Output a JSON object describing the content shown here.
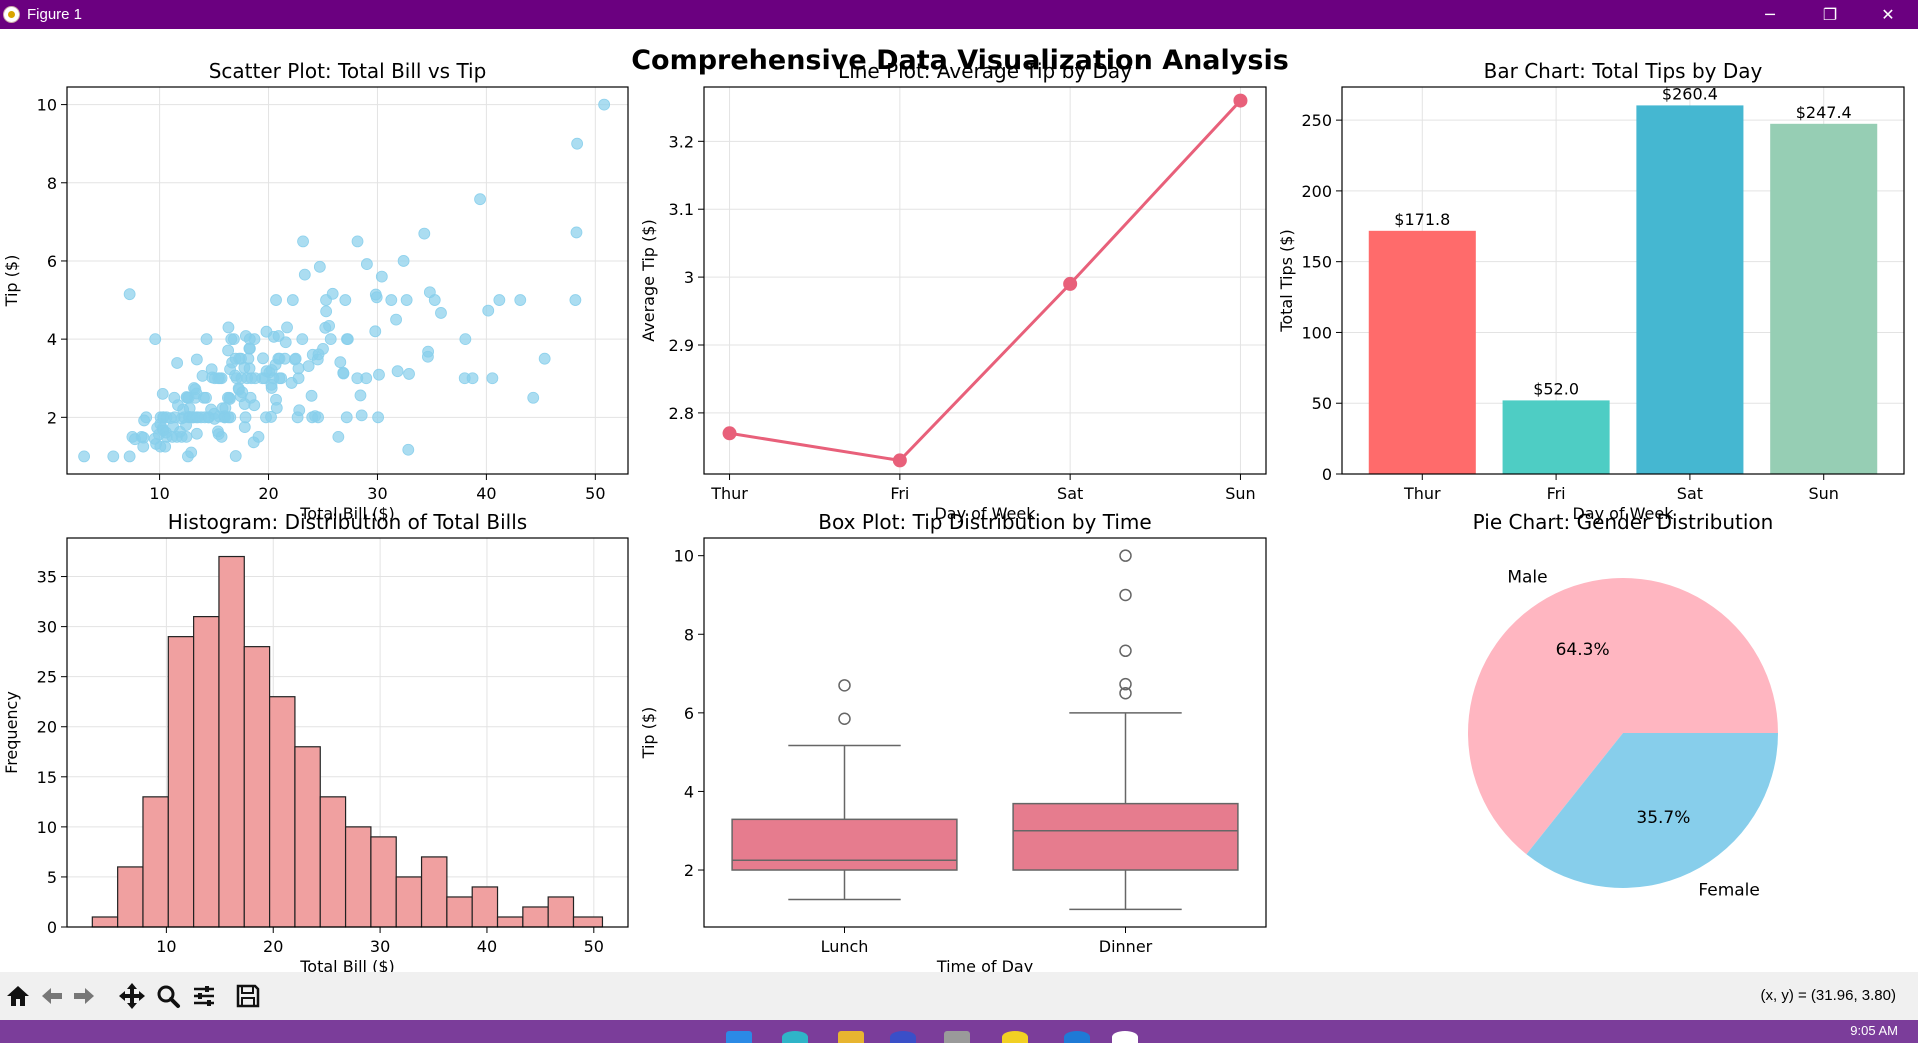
{
  "window": {
    "title": "Figure 1",
    "minimize_glyph": "─",
    "maximize_glyph": "❐",
    "close_glyph": "✕"
  },
  "figure": {
    "suptitle": "Comprehensive Data Visualization Analysis"
  },
  "toolbar": {
    "tools": [
      "home-icon",
      "back-arrow-icon",
      "forward-arrow-icon",
      "pan-icon",
      "zoom-icon",
      "configure-subplots-icon",
      "save-icon"
    ],
    "coord_readout": "(x, y) = (31.96, 3.80)"
  },
  "taskbar": {
    "clock": "9:05 AM",
    "accent": "#7b3d9a"
  },
  "colors": {
    "titlebar": "#6b0080",
    "scatter": "#87ceeb",
    "line": "#e8607a",
    "histogram": "#f0a0a0",
    "box": "#e67c8e"
  },
  "chart_data": [
    {
      "type": "scatter",
      "title": "Scatter Plot: Total Bill vs Tip",
      "xlabel": "Total Bill ($)",
      "ylabel": "Tip ($)",
      "xlim": [
        1.5,
        53
      ],
      "ylim": [
        0.55,
        10.45
      ],
      "xticks": [
        10,
        20,
        30,
        40,
        50
      ],
      "yticks": [
        2,
        4,
        6,
        8,
        10
      ],
      "grid": true,
      "points": [
        [
          3.07,
          1.0
        ],
        [
          5.75,
          1.0
        ],
        [
          7.25,
          1.0
        ],
        [
          7.25,
          5.15
        ],
        [
          7.5,
          1.5
        ],
        [
          7.74,
          1.44
        ],
        [
          8.35,
          1.5
        ],
        [
          8.5,
          1.25
        ],
        [
          8.52,
          1.48
        ],
        [
          8.58,
          1.92
        ],
        [
          8.77,
          2.0
        ],
        [
          9.55,
          1.45
        ],
        [
          9.6,
          4.0
        ],
        [
          9.68,
          1.32
        ],
        [
          9.78,
          1.73
        ],
        [
          9.94,
          1.56
        ],
        [
          10.07,
          1.25
        ],
        [
          10.07,
          1.83
        ],
        [
          10.09,
          2.0
        ],
        [
          10.27,
          1.71
        ],
        [
          10.29,
          2.6
        ],
        [
          10.33,
          1.67
        ],
        [
          10.33,
          2.0
        ],
        [
          10.34,
          1.66
        ],
        [
          10.34,
          2.0
        ],
        [
          10.51,
          1.25
        ],
        [
          10.59,
          1.61
        ],
        [
          10.63,
          2.0
        ],
        [
          10.65,
          1.5
        ],
        [
          11.02,
          1.98
        ],
        [
          11.17,
          1.5
        ],
        [
          11.24,
          1.76
        ],
        [
          11.35,
          2.5
        ],
        [
          11.38,
          2.0
        ],
        [
          11.59,
          1.5
        ],
        [
          11.61,
          3.39
        ],
        [
          11.69,
          2.31
        ],
        [
          11.87,
          1.63
        ],
        [
          12.02,
          1.97
        ],
        [
          12.03,
          1.5
        ],
        [
          12.16,
          2.2
        ],
        [
          12.26,
          2.0
        ],
        [
          12.43,
          1.8
        ],
        [
          12.46,
          1.5
        ],
        [
          12.48,
          2.52
        ],
        [
          12.54,
          2.5
        ],
        [
          12.6,
          1.0
        ],
        [
          12.66,
          2.5
        ],
        [
          12.69,
          2.0
        ],
        [
          12.74,
          2.01
        ],
        [
          12.76,
          2.23
        ],
        [
          12.9,
          1.1
        ],
        [
          13.0,
          2.0
        ],
        [
          13.03,
          2.0
        ],
        [
          13.13,
          2.0
        ],
        [
          13.16,
          2.75
        ],
        [
          13.27,
          2.5
        ],
        [
          13.28,
          2.72
        ],
        [
          13.37,
          2.0
        ],
        [
          13.39,
          2.61
        ],
        [
          13.42,
          1.58
        ],
        [
          13.42,
          3.48
        ],
        [
          13.51,
          2.0
        ],
        [
          13.81,
          2.0
        ],
        [
          13.94,
          3.06
        ],
        [
          14.07,
          2.5
        ],
        [
          14.15,
          2.0
        ],
        [
          14.26,
          2.5
        ],
        [
          14.31,
          4.0
        ],
        [
          14.48,
          2.0
        ],
        [
          14.52,
          2.0
        ],
        [
          14.73,
          2.2
        ],
        [
          14.78,
          3.23
        ],
        [
          14.83,
          3.02
        ],
        [
          15.01,
          2.09
        ],
        [
          15.04,
          1.96
        ],
        [
          15.06,
          3.0
        ],
        [
          15.36,
          1.64
        ],
        [
          15.38,
          3.0
        ],
        [
          15.42,
          1.57
        ],
        [
          15.48,
          2.02
        ],
        [
          15.53,
          3.0
        ],
        [
          15.69,
          1.5
        ],
        [
          15.69,
          3.0
        ],
        [
          15.77,
          2.23
        ],
        [
          15.95,
          2.0
        ],
        [
          15.98,
          2.03
        ],
        [
          16.0,
          2.0
        ],
        [
          16.04,
          2.24
        ],
        [
          16.27,
          2.5
        ],
        [
          16.29,
          3.71
        ],
        [
          16.31,
          2.0
        ],
        [
          16.32,
          4.3
        ],
        [
          16.4,
          2.5
        ],
        [
          16.45,
          2.47
        ],
        [
          16.47,
          3.23
        ],
        [
          16.49,
          2.0
        ],
        [
          16.58,
          4.0
        ],
        [
          16.66,
          3.4
        ],
        [
          16.82,
          4.0
        ],
        [
          16.93,
          3.07
        ],
        [
          16.97,
          3.5
        ],
        [
          16.99,
          1.01
        ],
        [
          17.07,
          3.0
        ],
        [
          17.26,
          2.74
        ],
        [
          17.29,
          2.71
        ],
        [
          17.31,
          3.5
        ],
        [
          17.46,
          2.54
        ],
        [
          17.47,
          3.5
        ],
        [
          17.51,
          3.0
        ],
        [
          17.59,
          2.64
        ],
        [
          17.78,
          3.27
        ],
        [
          17.81,
          2.34
        ],
        [
          17.82,
          1.75
        ],
        [
          17.89,
          2.0
        ],
        [
          17.92,
          4.08
        ],
        [
          18.04,
          3.0
        ],
        [
          18.15,
          3.5
        ],
        [
          18.24,
          3.76
        ],
        [
          18.26,
          3.25
        ],
        [
          18.28,
          4.0
        ],
        [
          18.29,
          3.76
        ],
        [
          18.35,
          2.5
        ],
        [
          18.43,
          3.0
        ],
        [
          18.64,
          1.36
        ],
        [
          18.69,
          2.31
        ],
        [
          18.71,
          4.0
        ],
        [
          18.78,
          3.0
        ],
        [
          19.08,
          1.5
        ],
        [
          19.44,
          3.0
        ],
        [
          19.49,
          3.51
        ],
        [
          19.65,
          3.0
        ],
        [
          19.77,
          2.0
        ],
        [
          19.81,
          4.19
        ],
        [
          19.82,
          3.18
        ],
        [
          20.08,
          3.15
        ],
        [
          20.23,
          2.01
        ],
        [
          20.27,
          2.83
        ],
        [
          20.29,
          2.75
        ],
        [
          20.29,
          3.21
        ],
        [
          20.45,
          3.0
        ],
        [
          20.49,
          4.06
        ],
        [
          20.65,
          3.35
        ],
        [
          20.69,
          2.45
        ],
        [
          20.69,
          5.0
        ],
        [
          20.76,
          2.24
        ],
        [
          20.9,
          3.5
        ],
        [
          20.92,
          4.08
        ],
        [
          21.01,
          3.0
        ],
        [
          21.01,
          3.5
        ],
        [
          21.16,
          3.0
        ],
        [
          21.5,
          3.5
        ],
        [
          21.58,
          3.92
        ],
        [
          21.7,
          4.3
        ],
        [
          22.12,
          2.88
        ],
        [
          22.23,
          5.0
        ],
        [
          22.42,
          3.48
        ],
        [
          22.49,
          3.5
        ],
        [
          22.67,
          2.0
        ],
        [
          22.75,
          3.25
        ],
        [
          22.76,
          3.0
        ],
        [
          22.82,
          2.18
        ],
        [
          23.1,
          4.0
        ],
        [
          23.17,
          6.5
        ],
        [
          23.33,
          5.65
        ],
        [
          23.68,
          3.31
        ],
        [
          23.95,
          2.55
        ],
        [
          24.01,
          2.0
        ],
        [
          24.06,
          3.6
        ],
        [
          24.27,
          2.03
        ],
        [
          24.52,
          3.48
        ],
        [
          24.55,
          2.0
        ],
        [
          24.59,
          3.61
        ],
        [
          24.71,
          5.85
        ],
        [
          25.0,
          3.75
        ],
        [
          25.21,
          4.29
        ],
        [
          25.28,
          5.0
        ],
        [
          25.29,
          4.71
        ],
        [
          25.56,
          4.34
        ],
        [
          25.71,
          4.0
        ],
        [
          25.89,
          5.16
        ],
        [
          26.41,
          1.5
        ],
        [
          26.59,
          3.41
        ],
        [
          26.86,
          3.14
        ],
        [
          26.88,
          3.12
        ],
        [
          27.05,
          5.0
        ],
        [
          27.18,
          2.0
        ],
        [
          27.2,
          4.0
        ],
        [
          27.28,
          4.0
        ],
        [
          28.15,
          3.0
        ],
        [
          28.17,
          6.5
        ],
        [
          28.44,
          2.56
        ],
        [
          28.55,
          2.05
        ],
        [
          28.97,
          3.0
        ],
        [
          29.03,
          5.92
        ],
        [
          29.8,
          4.2
        ],
        [
          29.85,
          5.14
        ],
        [
          29.93,
          5.07
        ],
        [
          30.06,
          2.0
        ],
        [
          30.14,
          3.09
        ],
        [
          30.4,
          5.6
        ],
        [
          31.27,
          5.0
        ],
        [
          31.71,
          4.5
        ],
        [
          31.85,
          3.18
        ],
        [
          32.4,
          6.0
        ],
        [
          32.68,
          5.0
        ],
        [
          32.83,
          1.17
        ],
        [
          32.9,
          3.11
        ],
        [
          34.3,
          6.7
        ],
        [
          34.63,
          3.55
        ],
        [
          34.65,
          3.68
        ],
        [
          34.81,
          5.2
        ],
        [
          35.26,
          5.0
        ],
        [
          35.83,
          4.67
        ],
        [
          38.01,
          3.0
        ],
        [
          38.07,
          4.0
        ],
        [
          38.73,
          3.0
        ],
        [
          39.42,
          7.58
        ],
        [
          40.17,
          4.73
        ],
        [
          40.55,
          3.0
        ],
        [
          41.19,
          5.0
        ],
        [
          43.11,
          5.0
        ],
        [
          44.3,
          2.5
        ],
        [
          45.35,
          3.5
        ],
        [
          48.17,
          5.0
        ],
        [
          48.27,
          6.73
        ],
        [
          48.33,
          9.0
        ],
        [
          50.81,
          10.0
        ]
      ]
    },
    {
      "type": "line",
      "title": "Line Plot: Average Tip by Day",
      "xlabel": "Day of Week",
      "ylabel": "Average Tip ($)",
      "categories": [
        "Thur",
        "Fri",
        "Sat",
        "Sun"
      ],
      "values": [
        2.77,
        2.73,
        2.99,
        3.26
      ],
      "ylim": [
        2.71,
        3.28
      ],
      "yticks": [
        2.8,
        2.9,
        3.0,
        3.1,
        3.2
      ],
      "grid": true
    },
    {
      "type": "bar",
      "title": "Bar Chart: Total Tips by Day",
      "xlabel": "Day of Week",
      "ylabel": "Total Tips ($)",
      "categories": [
        "Thur",
        "Fri",
        "Sat",
        "Sun"
      ],
      "values": [
        171.8,
        52.0,
        260.4,
        247.4
      ],
      "data_labels": [
        "$171.8",
        "$52.0",
        "$260.4",
        "$247.4"
      ],
      "colors": [
        "#ff6b6b",
        "#4ecdc4",
        "#45b7d1",
        "#96ceb4"
      ],
      "ylim": [
        0,
        273.4
      ],
      "yticks": [
        0,
        50,
        100,
        150,
        200,
        250
      ],
      "grid": true
    },
    {
      "type": "bar",
      "title": "Histogram: Distribution of Total Bills",
      "xlabel": "Total Bill ($)",
      "ylabel": "Frequency",
      "bin_edges": [
        3.07,
        5.44,
        7.81,
        10.18,
        12.55,
        14.92,
        17.29,
        19.66,
        22.03,
        24.4,
        26.77,
        29.14,
        31.51,
        33.88,
        36.25,
        38.62,
        40.99,
        43.36,
        45.73,
        48.1,
        50.81
      ],
      "values": [
        1,
        6,
        13,
        29,
        31,
        37,
        28,
        23,
        18,
        13,
        10,
        9,
        5,
        7,
        3,
        4,
        1,
        2,
        3,
        1
      ],
      "xlim": [
        0.7,
        53.2
      ],
      "ylim": [
        0,
        38.85
      ],
      "xticks": [
        10,
        20,
        30,
        40,
        50
      ],
      "yticks": [
        0,
        5,
        10,
        15,
        20,
        25,
        30,
        35
      ],
      "grid": true
    },
    {
      "type": "box",
      "title": "Box Plot: Tip Distribution by Time",
      "xlabel": "Time of Day",
      "ylabel": "Tip ($)",
      "categories": [
        "Lunch",
        "Dinner"
      ],
      "boxes": [
        {
          "whisker_low": 1.25,
          "q1": 2.0,
          "median": 2.25,
          "q3": 3.29,
          "whisker_high": 5.17,
          "outliers": [
            5.85,
            6.7
          ]
        },
        {
          "whisker_low": 1.0,
          "q1": 2.0,
          "median": 3.0,
          "q3": 3.69,
          "whisker_high": 6.0,
          "outliers": [
            6.5,
            6.73,
            7.58,
            9.0,
            10.0
          ]
        }
      ],
      "ylim": [
        0.55,
        10.45
      ],
      "yticks": [
        2,
        4,
        6,
        8,
        10
      ],
      "grid": false
    },
    {
      "type": "pie",
      "title": "Pie Chart: Gender Distribution",
      "labels": [
        "Male",
        "Female"
      ],
      "values": [
        64.3,
        35.7
      ],
      "autopct": [
        "64.3%",
        "35.7%"
      ],
      "colors": [
        "#ffb6c1",
        "#87ceeb"
      ]
    }
  ]
}
